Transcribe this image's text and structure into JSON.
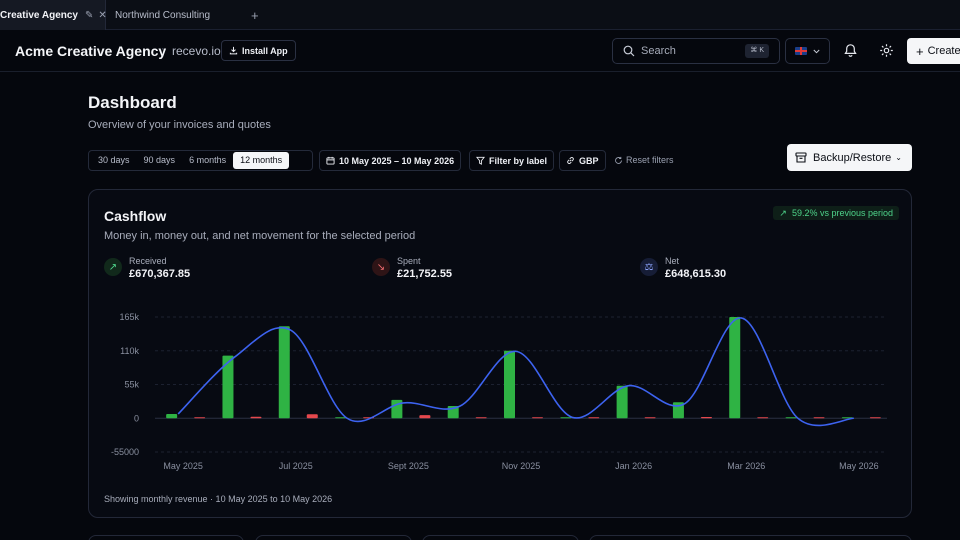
{
  "tabs": {
    "active_label": "Creative Agency",
    "inactive_label": "Northwind Consulting",
    "new_tab": "+"
  },
  "header": {
    "brand": "Acme Creative Agency",
    "separator": "·",
    "domain": "recevo.io",
    "install_label": "Install App",
    "search_placeholder": "Search",
    "search_shortcut": "⌘ K",
    "language": "gb-flag-icon",
    "create_label": "Create"
  },
  "page": {
    "title": "Dashboard",
    "subtitle": "Overview of your invoices and quotes"
  },
  "filters": {
    "ranges": [
      "30 days",
      "90 days",
      "6 months",
      "12 months"
    ],
    "selected_range": "12 months",
    "date_range": "10 May 2025 – 10 May 2026",
    "label_filter": "Filter by label",
    "currency": "GBP",
    "reset": "Reset filters",
    "backup": "Backup/Restore"
  },
  "cashflow": {
    "title": "Cashflow",
    "description": "Money in, money out, and net movement for the selected period",
    "trend": "59.2% vs previous period",
    "received_label": "Received",
    "received_value": "£670,367.85",
    "spent_label": "Spent",
    "spent_value": "£21,752.55",
    "net_label": "Net",
    "net_value": "£648,615.30",
    "footnote": "Showing monthly revenue · 10 May 2025 to 10 May 2026"
  },
  "colors": {
    "received": "#2fb344",
    "spent": "#e5484d",
    "net": "#3d63f0",
    "trend": "#4ed38a"
  },
  "chart_data": {
    "type": "bar",
    "categories": [
      "May 2025",
      "Jun 2025",
      "Jul 2025",
      "Aug 2025",
      "Sept 2025",
      "Oct 2025",
      "Nov 2025",
      "Dec 2025",
      "Jan 2026",
      "Feb 2026",
      "Mar 2026",
      "Apr 2026",
      "May 2026"
    ],
    "x_tick_labels": [
      "May 2025",
      "Jul 2025",
      "Sept 2025",
      "Nov 2025",
      "Jan 2026",
      "Mar 2026",
      "May 2026"
    ],
    "y_tick_labels": [
      "165k",
      "110k",
      "55k",
      "0",
      "-55000"
    ],
    "ylim": [
      -55000,
      165000
    ],
    "grid": true,
    "series": [
      {
        "name": "Received",
        "type": "bar",
        "values": [
          7000,
          102000,
          150000,
          0,
          30000,
          20000,
          110000,
          1500,
          53000,
          26000,
          165000,
          1000,
          0
        ]
      },
      {
        "name": "Spent",
        "type": "bar",
        "values": [
          0,
          2500,
          6500,
          0,
          5000,
          500,
          1000,
          0,
          0,
          2000,
          1500,
          500,
          0
        ]
      },
      {
        "name": "Net",
        "type": "line",
        "values": [
          7000,
          99500,
          143500,
          0,
          25000,
          19500,
          109000,
          1500,
          53000,
          24000,
          163500,
          500,
          0
        ]
      }
    ]
  }
}
